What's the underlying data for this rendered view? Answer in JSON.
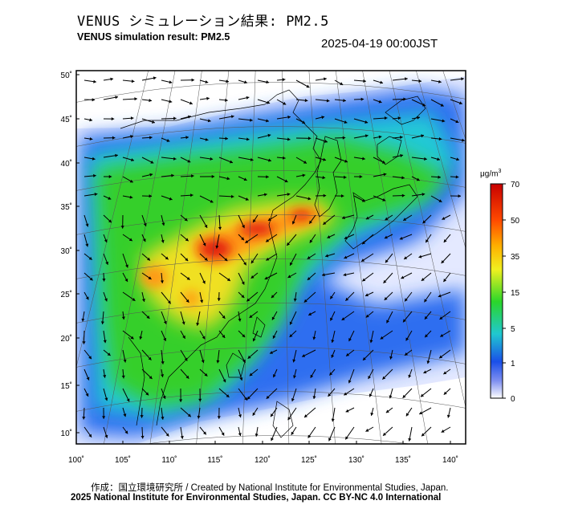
{
  "title_jp": "VENUS シミュレーション結果: PM2.5",
  "title_en": "VENUS simulation result: PM2.5",
  "timestamp": "2025-04-19 00:00JST",
  "latitude_ticks": [
    "50˚",
    "45˚",
    "40˚",
    "35˚",
    "30˚",
    "25˚",
    "20˚",
    "15˚",
    "10˚"
  ],
  "longitude_ticks": [
    "100˚",
    "105˚",
    "110˚",
    "115˚",
    "120˚",
    "125˚",
    "130˚",
    "135˚",
    "140˚"
  ],
  "colorbar": {
    "unit_base": "μg/m",
    "unit_exp": "3",
    "labels": [
      "70",
      "50",
      "35",
      "15",
      "5",
      "1",
      "0"
    ],
    "colors": [
      "#d40000",
      "#ff8800",
      "#ffe400",
      "#27d81a",
      "#1fc4d0",
      "#1a5ff0",
      "#dfe3ff"
    ]
  },
  "credit_line1": "作成：国立環境研究所 / Created by National Institute for Environmental Studies, Japan.",
  "credit_line2": "2025 National Institute for Environmental Studies, Japan. CC BY-NC 4.0 International",
  "colors": {
    "low": "#e8ecff",
    "blue": "#2e6ef0",
    "cyan": "#22c9d6",
    "green": "#36cf2c",
    "yellow": "#f0e020",
    "orange": "#ff9a16",
    "red": "#e21a10"
  }
}
